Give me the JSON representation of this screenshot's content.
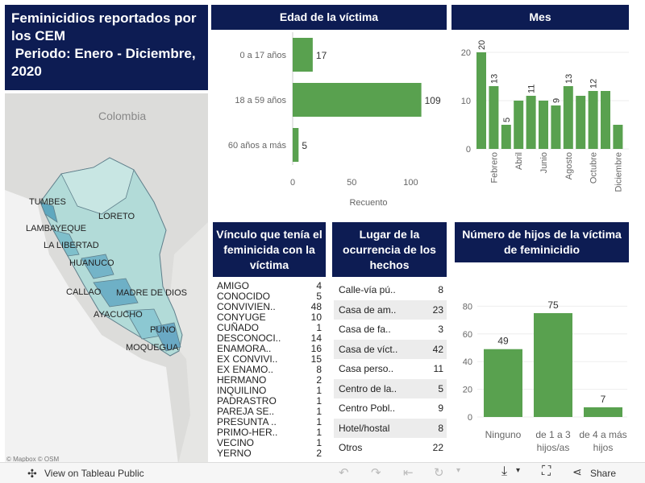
{
  "title": {
    "line1": "Feminicidios reportados por",
    "line2": "los CEM",
    "line3": " Periodo: Enero - Diciembre,",
    "line4": "2020"
  },
  "map": {
    "country_label": "Colombia",
    "regions": [
      "TUMBES",
      "LORETO",
      "LAMBAYEQUE",
      "LA LIBERTAD",
      "HUANUCO",
      "CALLAO",
      "MADRE DE DIOS",
      "AYACUCHO",
      "PUNO",
      "MOQUEGUA"
    ],
    "attribution": "© Mapbox  © OSM"
  },
  "age_chart": {
    "title": "Edad de la víctima",
    "xlabel": "Recuento",
    "chart_data": {
      "type": "bar",
      "orientation": "horizontal",
      "categories": [
        "0 a 17 años",
        "18 a 59 años",
        "60 años a más"
      ],
      "values": [
        17,
        109,
        5
      ],
      "xlim": [
        0,
        140
      ],
      "xticks": [
        "0",
        "50",
        "100"
      ],
      "color": "#59a14f"
    }
  },
  "month_chart": {
    "title": "Mes",
    "chart_data": {
      "type": "bar",
      "categories": [
        "Enero",
        "Febrero",
        "Marzo",
        "Abril",
        "Mayo",
        "Junio",
        "Julio",
        "Agosto",
        "Septiembre",
        "Octubre",
        "Noviembre",
        "Diciembre"
      ],
      "shown_tick_labels": [
        "Febrero",
        "Abril",
        "Junio",
        "Agosto",
        "Octubre",
        "Diciembre"
      ],
      "values": [
        20,
        13,
        5,
        10,
        11,
        10,
        9,
        13,
        11,
        12,
        12,
        5
      ],
      "labeled": [
        "20",
        "13",
        "5",
        "",
        "11",
        "",
        "9",
        "13",
        "",
        "12",
        "",
        ""
      ],
      "ylim": [
        0,
        23
      ],
      "yticks": [
        "0",
        "10",
        "20"
      ],
      "color": "#59a14f"
    }
  },
  "vinculo": {
    "title": "Vínculo que tenía el feminicida con la víctima",
    "rows": [
      {
        "label": "AMIGO",
        "value": "4"
      },
      {
        "label": "CONOCIDO",
        "value": "5"
      },
      {
        "label": "CONVIVIEN..",
        "value": "48"
      },
      {
        "label": "CONYUGE",
        "value": "10"
      },
      {
        "label": "CUÑADO",
        "value": "1"
      },
      {
        "label": "DESCONOCI..",
        "value": "14"
      },
      {
        "label": "ENAMORA..",
        "value": "16"
      },
      {
        "label": "EX CONVIVI..",
        "value": "15"
      },
      {
        "label": "EX ENAMO..",
        "value": "8"
      },
      {
        "label": "HERMANO",
        "value": "2"
      },
      {
        "label": "INQUILINO",
        "value": "1"
      },
      {
        "label": "PADRASTRO",
        "value": "1"
      },
      {
        "label": "PAREJA SE..",
        "value": "1"
      },
      {
        "label": "PRESUNTA ..",
        "value": "1"
      },
      {
        "label": "PRIMO-HER..",
        "value": "1"
      },
      {
        "label": "VECINO",
        "value": "1"
      },
      {
        "label": "YERNO",
        "value": "2"
      }
    ]
  },
  "lugar": {
    "title": "Lugar de la ocurrencia de los hechos",
    "rows": [
      {
        "label": "Calle-vía pú..",
        "value": "8"
      },
      {
        "label": "Casa de am..",
        "value": "23"
      },
      {
        "label": "Casa de fa..",
        "value": "3"
      },
      {
        "label": "Casa de víct..",
        "value": "42"
      },
      {
        "label": "Casa perso..",
        "value": "11"
      },
      {
        "label": "Centro de la..",
        "value": "5"
      },
      {
        "label": "Centro Pobl..",
        "value": "9"
      },
      {
        "label": "Hotel/hostal",
        "value": "8"
      },
      {
        "label": "Otros",
        "value": "22"
      }
    ]
  },
  "hijos_chart": {
    "title": "Número de hijos de la víctima de feminicidio",
    "chart_data": {
      "type": "bar",
      "categories": [
        [
          "Ninguno"
        ],
        [
          "de 1 a 3",
          "hijos/as"
        ],
        [
          "de 4 a más",
          "hijos"
        ]
      ],
      "values": [
        49,
        75,
        7
      ],
      "ylim": [
        0,
        85
      ],
      "yticks": [
        "0",
        "20",
        "40",
        "60",
        "80"
      ],
      "color": "#59a14f"
    }
  },
  "footer": {
    "view_label": "View on Tableau Public",
    "share_label": "Share"
  }
}
